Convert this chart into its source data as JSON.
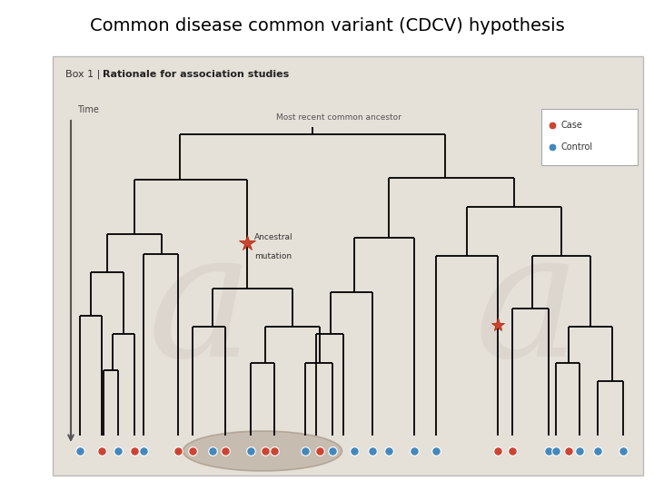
{
  "title": "Common disease common variant (CDCV) hypothesis",
  "title_fontsize": 14,
  "box_bg": "#e5e0d8",
  "bg_color": "#ffffff",
  "box_label_plain": "Box 1 | ",
  "box_label_bold": "Rationale for association studies",
  "most_recent_label": "Most recent common ancestor",
  "time_label": "Time",
  "ancestral_label1": "Ancestral",
  "ancestral_label2": "mutation",
  "case_color": "#cc4433",
  "control_color": "#4488bb",
  "legend_case": "Case",
  "legend_control": "Control",
  "lw": 1.3,
  "dot_size": 48
}
